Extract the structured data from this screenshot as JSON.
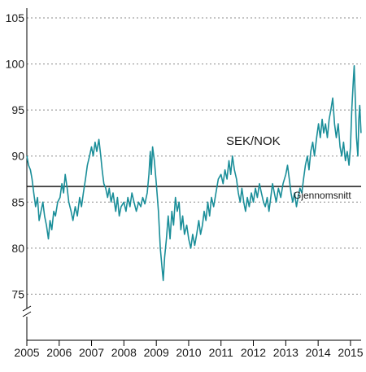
{
  "chart_data": {
    "type": "line",
    "title": "",
    "xlabel": "",
    "ylabel": "",
    "ylim": [
      70,
      105
    ],
    "xlim": [
      "2005-01-01",
      "2015-05-01"
    ],
    "yticks": [
      75,
      80,
      85,
      90,
      95,
      100,
      105
    ],
    "xtick_labels": [
      "2005",
      "2006",
      "2007",
      "2008",
      "2009",
      "2010",
      "2011",
      "2012",
      "2013",
      "2014",
      "2015"
    ],
    "grid": "horizontal-dotted",
    "axis_break": true,
    "series": [
      {
        "name": "SEK/NOK",
        "color": "#1a8e99",
        "points": [
          [
            "2005-01-01",
            90.0
          ],
          [
            "2005-01-20",
            89.0
          ],
          [
            "2005-02-10",
            88.5
          ],
          [
            "2005-03-01",
            87.5
          ],
          [
            "2005-03-20",
            86.0
          ],
          [
            "2005-04-10",
            84.5
          ],
          [
            "2005-05-01",
            85.5
          ],
          [
            "2005-05-20",
            83.0
          ],
          [
            "2005-06-10",
            84.0
          ],
          [
            "2005-07-01",
            85.0
          ],
          [
            "2005-07-20",
            83.5
          ],
          [
            "2005-08-10",
            82.5
          ],
          [
            "2005-09-01",
            81.0
          ],
          [
            "2005-09-20",
            83.0
          ],
          [
            "2005-10-10",
            82.0
          ],
          [
            "2005-11-01",
            84.0
          ],
          [
            "2005-11-20",
            83.5
          ],
          [
            "2005-12-15",
            85.0
          ],
          [
            "2006-01-10",
            85.5
          ],
          [
            "2006-02-01",
            87.0
          ],
          [
            "2006-02-20",
            86.0
          ],
          [
            "2006-03-10",
            88.0
          ],
          [
            "2006-04-01",
            86.5
          ],
          [
            "2006-04-20",
            85.0
          ],
          [
            "2006-05-15",
            84.0
          ],
          [
            "2006-06-05",
            83.0
          ],
          [
            "2006-07-01",
            84.5
          ],
          [
            "2006-07-25",
            83.5
          ],
          [
            "2006-08-20",
            85.5
          ],
          [
            "2006-09-10",
            84.5
          ],
          [
            "2006-10-01",
            86.0
          ],
          [
            "2006-10-25",
            87.5
          ],
          [
            "2006-11-15",
            89.0
          ],
          [
            "2006-12-10",
            90.0
          ],
          [
            "2007-01-01",
            91.0
          ],
          [
            "2007-01-20",
            90.0
          ],
          [
            "2007-02-10",
            91.5
          ],
          [
            "2007-03-01",
            90.5
          ],
          [
            "2007-03-25",
            91.8
          ],
          [
            "2007-04-15",
            90.0
          ],
          [
            "2007-05-01",
            88.5
          ],
          [
            "2007-05-20",
            87.0
          ],
          [
            "2007-06-10",
            86.5
          ],
          [
            "2007-07-01",
            85.5
          ],
          [
            "2007-07-20",
            86.5
          ],
          [
            "2007-08-10",
            85.0
          ],
          [
            "2007-09-01",
            86.0
          ],
          [
            "2007-10-01",
            84.0
          ],
          [
            "2007-10-20",
            85.5
          ],
          [
            "2007-11-10",
            83.5
          ],
          [
            "2007-12-01",
            84.5
          ],
          [
            "2008-01-01",
            85.0
          ],
          [
            "2008-01-25",
            84.0
          ],
          [
            "2008-02-15",
            85.5
          ],
          [
            "2008-03-10",
            84.5
          ],
          [
            "2008-04-01",
            86.0
          ],
          [
            "2008-04-25",
            85.0
          ],
          [
            "2008-05-20",
            84.0
          ],
          [
            "2008-06-15",
            85.0
          ],
          [
            "2008-07-10",
            84.5
          ],
          [
            "2008-08-01",
            85.5
          ],
          [
            "2008-08-25",
            84.8
          ],
          [
            "2008-09-20",
            86.0
          ],
          [
            "2008-10-10",
            88.0
          ],
          [
            "2008-10-25",
            90.5
          ],
          [
            "2008-11-05",
            88.0
          ],
          [
            "2008-11-20",
            91.0
          ],
          [
            "2008-12-10",
            89.5
          ],
          [
            "2009-01-01",
            87.0
          ],
          [
            "2009-01-25",
            84.0
          ],
          [
            "2009-02-15",
            80.0
          ],
          [
            "2009-03-05",
            78.0
          ],
          [
            "2009-03-20",
            76.5
          ],
          [
            "2009-04-05",
            79.0
          ],
          [
            "2009-04-25",
            81.0
          ],
          [
            "2009-05-15",
            83.5
          ],
          [
            "2009-06-05",
            81.0
          ],
          [
            "2009-06-25",
            84.0
          ],
          [
            "2009-07-15",
            82.5
          ],
          [
            "2009-08-05",
            85.5
          ],
          [
            "2009-08-25",
            84.0
          ],
          [
            "2009-09-15",
            85.0
          ],
          [
            "2009-10-05",
            82.0
          ],
          [
            "2009-10-25",
            83.5
          ],
          [
            "2009-11-15",
            81.5
          ],
          [
            "2009-12-10",
            82.5
          ],
          [
            "2010-01-01",
            81.0
          ],
          [
            "2010-01-25",
            80.0
          ],
          [
            "2010-02-15",
            81.5
          ],
          [
            "2010-03-10",
            80.3
          ],
          [
            "2010-04-01",
            81.5
          ],
          [
            "2010-04-25",
            83.0
          ],
          [
            "2010-05-15",
            81.5
          ],
          [
            "2010-06-05",
            82.5
          ],
          [
            "2010-06-25",
            84.0
          ],
          [
            "2010-07-15",
            83.0
          ],
          [
            "2010-08-05",
            85.0
          ],
          [
            "2010-08-25",
            83.5
          ],
          [
            "2010-09-15",
            85.5
          ],
          [
            "2010-10-10",
            84.5
          ],
          [
            "2010-11-05",
            86.0
          ],
          [
            "2010-12-01",
            87.5
          ],
          [
            "2011-01-01",
            88.0
          ],
          [
            "2011-01-25",
            87.0
          ],
          [
            "2011-02-15",
            88.5
          ],
          [
            "2011-03-10",
            87.5
          ],
          [
            "2011-04-01",
            89.5
          ],
          [
            "2011-04-20",
            88.0
          ],
          [
            "2011-05-10",
            90.0
          ],
          [
            "2011-06-01",
            88.5
          ],
          [
            "2011-06-25",
            87.5
          ],
          [
            "2011-07-15",
            86.0
          ],
          [
            "2011-08-05",
            85.0
          ],
          [
            "2011-08-25",
            86.5
          ],
          [
            "2011-09-15",
            85.0
          ],
          [
            "2011-10-05",
            84.0
          ],
          [
            "2011-10-25",
            85.5
          ],
          [
            "2011-11-15",
            84.5
          ],
          [
            "2011-12-10",
            86.0
          ],
          [
            "2012-01-01",
            85.0
          ],
          [
            "2012-01-25",
            86.5
          ],
          [
            "2012-02-15",
            85.5
          ],
          [
            "2012-03-10",
            87.0
          ],
          [
            "2012-04-01",
            86.0
          ],
          [
            "2012-04-25",
            85.0
          ],
          [
            "2012-05-15",
            84.5
          ],
          [
            "2012-06-05",
            85.5
          ],
          [
            "2012-06-25",
            84.0
          ],
          [
            "2012-07-15",
            85.5
          ],
          [
            "2012-08-05",
            87.0
          ],
          [
            "2012-08-25",
            86.0
          ],
          [
            "2012-09-15",
            85.0
          ],
          [
            "2012-10-10",
            86.5
          ],
          [
            "2012-11-05",
            85.5
          ],
          [
            "2012-12-01",
            87.0
          ],
          [
            "2013-01-01",
            88.0
          ],
          [
            "2013-01-20",
            89.0
          ],
          [
            "2013-02-10",
            87.5
          ],
          [
            "2013-03-01",
            86.0
          ],
          [
            "2013-03-20",
            85.0
          ],
          [
            "2013-04-10",
            86.0
          ],
          [
            "2013-05-01",
            84.5
          ],
          [
            "2013-05-20",
            85.5
          ],
          [
            "2013-06-10",
            86.5
          ],
          [
            "2013-07-01",
            86.0
          ],
          [
            "2013-07-20",
            87.5
          ],
          [
            "2013-08-10",
            89.0
          ],
          [
            "2013-09-01",
            90.0
          ],
          [
            "2013-09-20",
            88.5
          ],
          [
            "2013-10-10",
            90.5
          ],
          [
            "2013-11-01",
            91.5
          ],
          [
            "2013-11-20",
            90.0
          ],
          [
            "2013-12-15",
            92.0
          ],
          [
            "2014-01-05",
            93.5
          ],
          [
            "2014-01-25",
            92.0
          ],
          [
            "2014-02-15",
            94.0
          ],
          [
            "2014-03-05",
            92.5
          ],
          [
            "2014-03-25",
            93.5
          ],
          [
            "2014-04-15",
            92.0
          ],
          [
            "2014-05-05",
            94.0
          ],
          [
            "2014-05-25",
            95.0
          ],
          [
            "2014-06-15",
            96.3
          ],
          [
            "2014-07-05",
            93.5
          ],
          [
            "2014-07-25",
            92.0
          ],
          [
            "2014-08-15",
            93.5
          ],
          [
            "2014-09-05",
            91.0
          ],
          [
            "2014-09-25",
            90.0
          ],
          [
            "2014-10-15",
            91.5
          ],
          [
            "2014-11-05",
            89.5
          ],
          [
            "2014-11-25",
            90.5
          ],
          [
            "2014-12-15",
            89.0
          ],
          [
            "2015-01-01",
            91.0
          ],
          [
            "2015-01-15",
            95.0
          ],
          [
            "2015-02-01",
            98.0
          ],
          [
            "2015-02-12",
            99.8
          ],
          [
            "2015-02-25",
            96.0
          ],
          [
            "2015-03-10",
            92.0
          ],
          [
            "2015-03-25",
            90.0
          ],
          [
            "2015-04-05",
            94.0
          ],
          [
            "2015-04-15",
            95.5
          ],
          [
            "2015-04-30",
            92.5
          ]
        ]
      }
    ],
    "series_label": "SEK/NOK",
    "reference_lines": [
      {
        "name": "Gjennomsnitt",
        "value": 86.7,
        "color": "#000000"
      }
    ],
    "avg_label": "Gjennomsnitt"
  }
}
